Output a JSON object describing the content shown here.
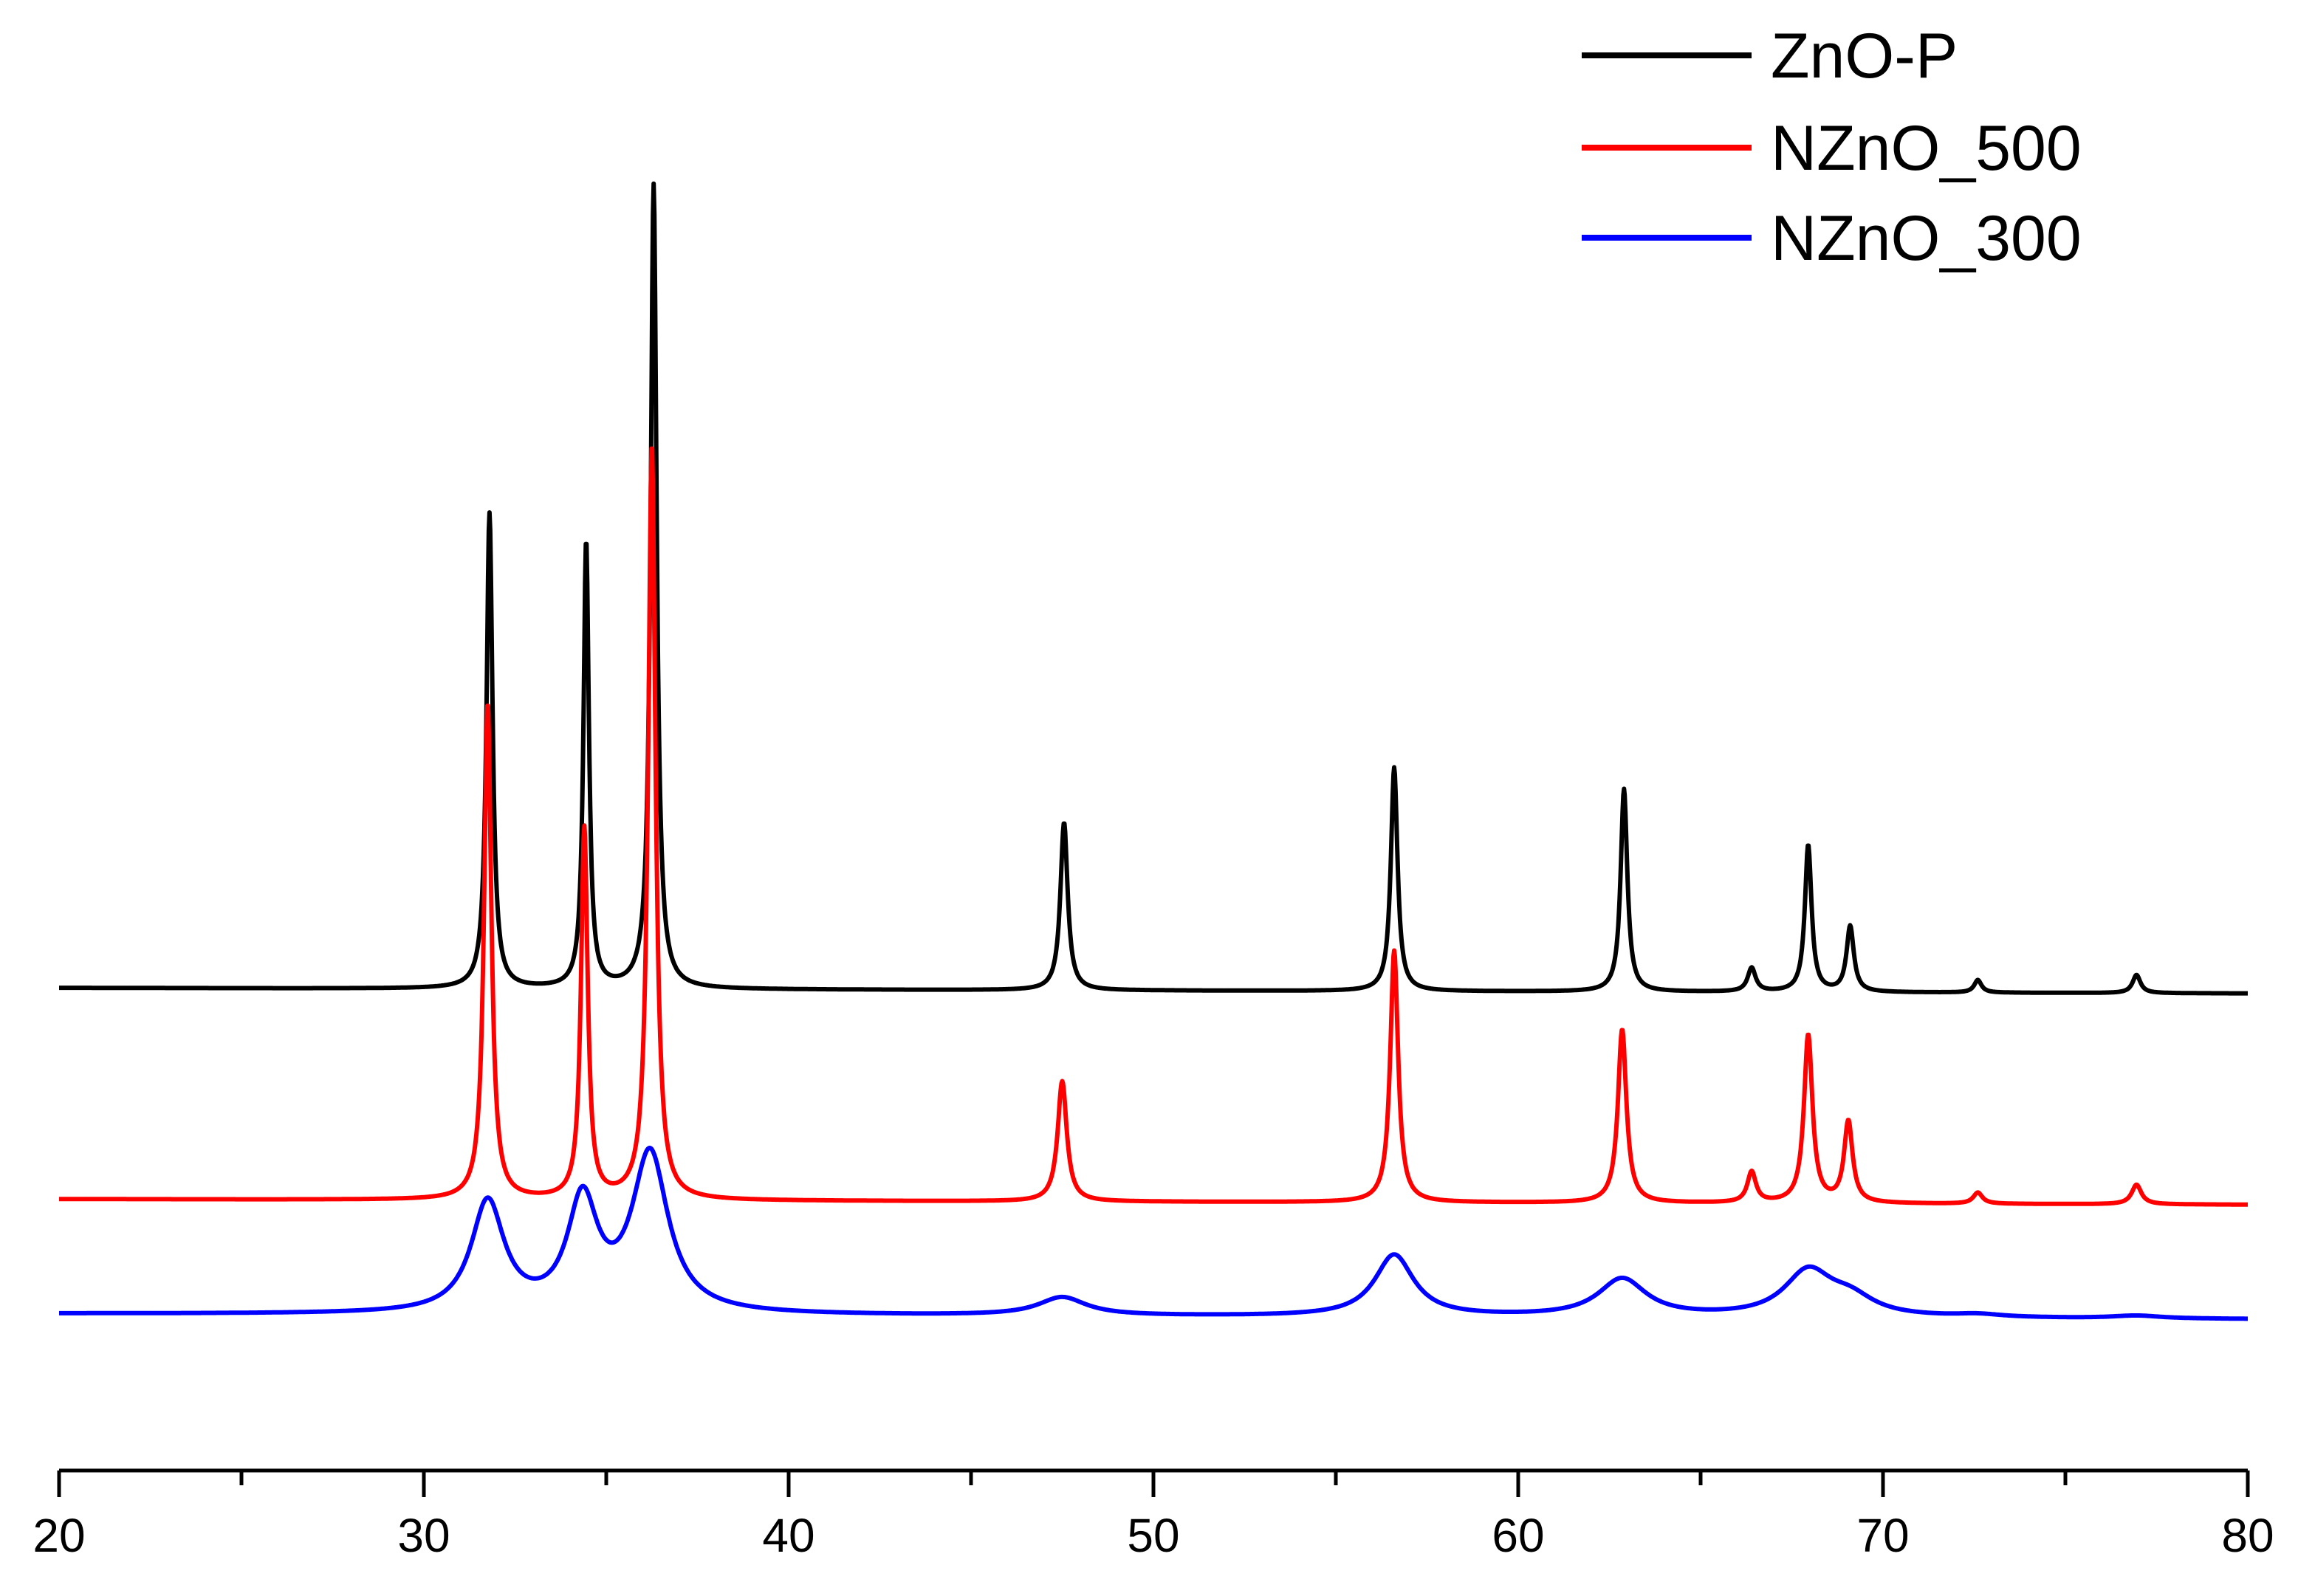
{
  "chart_data": {
    "type": "line",
    "title": "",
    "xlabel": "",
    "ylabel": "",
    "xlim": [
      20,
      80
    ],
    "ylim": [
      -3,
      100
    ],
    "x_ticks": [
      20,
      30,
      40,
      50,
      60,
      70,
      80
    ],
    "x_tick_labels": [
      "20",
      "30",
      "40",
      "50",
      "60",
      "70",
      "80"
    ],
    "x_minor_step": 5,
    "y_axis_visible": false,
    "grid": false,
    "legend_position": "top-right",
    "series": [
      {
        "name": "ZnO-P",
        "color": "#000000",
        "baseline": 31.5,
        "baseline_end": 31.1,
        "peaks": [
          {
            "x": 31.8,
            "height": 34.0,
            "width": 0.1
          },
          {
            "x": 34.45,
            "height": 32.0,
            "width": 0.09
          },
          {
            "x": 36.3,
            "height": 57.5,
            "width": 0.1
          },
          {
            "x": 47.55,
            "height": 12.0,
            "width": 0.12
          },
          {
            "x": 56.6,
            "height": 16.0,
            "width": 0.11
          },
          {
            "x": 62.9,
            "height": 14.5,
            "width": 0.11
          },
          {
            "x": 66.4,
            "height": 1.7,
            "width": 0.13
          },
          {
            "x": 67.95,
            "height": 10.5,
            "width": 0.11
          },
          {
            "x": 69.1,
            "height": 4.7,
            "width": 0.12
          },
          {
            "x": 72.6,
            "height": 0.9,
            "width": 0.12
          },
          {
            "x": 76.95,
            "height": 1.3,
            "width": 0.13
          }
        ]
      },
      {
        "name": "NZnO_500",
        "color": "#ff0000",
        "baseline": 16.4,
        "baseline_end": 16.0,
        "peaks": [
          {
            "x": 31.75,
            "height": 35.5,
            "width": 0.12
          },
          {
            "x": 34.4,
            "height": 26.5,
            "width": 0.11
          },
          {
            "x": 36.25,
            "height": 54.0,
            "width": 0.12
          },
          {
            "x": 47.5,
            "height": 8.6,
            "width": 0.15
          },
          {
            "x": 56.6,
            "height": 18.0,
            "width": 0.13
          },
          {
            "x": 62.85,
            "height": 12.4,
            "width": 0.14
          },
          {
            "x": 66.4,
            "height": 2.2,
            "width": 0.14
          },
          {
            "x": 67.95,
            "height": 12.0,
            "width": 0.14
          },
          {
            "x": 69.05,
            "height": 5.8,
            "width": 0.14
          },
          {
            "x": 72.6,
            "height": 0.8,
            "width": 0.15
          },
          {
            "x": 76.95,
            "height": 1.4,
            "width": 0.16
          }
        ]
      },
      {
        "name": "NZnO_300",
        "color": "#0000ff",
        "baseline": 8.2,
        "baseline_end": 7.8,
        "peaks": [
          {
            "x": 31.75,
            "height": 7.9,
            "width": 0.55
          },
          {
            "x": 34.35,
            "height": 7.8,
            "width": 0.5
          },
          {
            "x": 36.2,
            "height": 11.3,
            "width": 0.6
          },
          {
            "x": 47.5,
            "height": 1.3,
            "width": 0.8
          },
          {
            "x": 56.6,
            "height": 4.4,
            "width": 0.65
          },
          {
            "x": 62.85,
            "height": 2.7,
            "width": 0.8
          },
          {
            "x": 67.95,
            "height": 3.2,
            "width": 0.8
          },
          {
            "x": 69.1,
            "height": 1.2,
            "width": 0.8
          },
          {
            "x": 72.6,
            "height": 0.2,
            "width": 0.8
          },
          {
            "x": 76.95,
            "height": 0.2,
            "width": 0.8
          }
        ]
      }
    ]
  }
}
